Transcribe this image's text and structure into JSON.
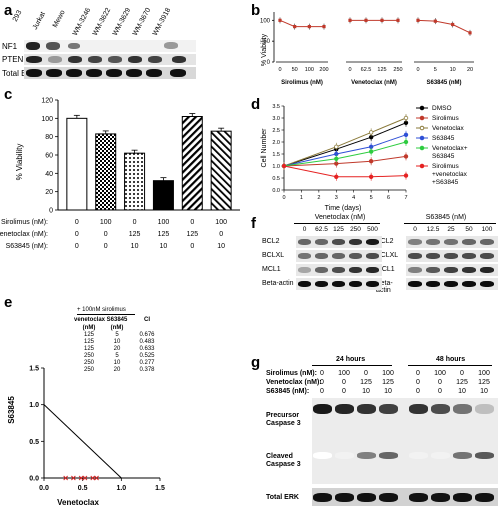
{
  "panel_letters": [
    "a",
    "b",
    "c",
    "d",
    "e",
    "f",
    "g"
  ],
  "panel_a": {
    "lanes": [
      "293",
      "Jurkat",
      "Mewo",
      "WM-3246",
      "WM-3622",
      "WM-3629",
      "WM-3670",
      "WM-3918"
    ],
    "rows": [
      "NF1",
      "PTEN",
      "Total ERK"
    ]
  },
  "panel_b": {
    "ylabel": "% Viability",
    "groups": [
      {
        "xlabel": "Sirolimus (nM)",
        "ticks": [
          "0",
          "50",
          "100",
          "200"
        ]
      },
      {
        "xlabel": "Venetoclax (nM)",
        "ticks": [
          "0",
          "62.5",
          "125",
          "250"
        ]
      },
      {
        "xlabel": "S63845 (nM)",
        "ticks": [
          "0",
          "5",
          "10",
          "20"
        ]
      }
    ],
    "ytick_labels": [
      "0",
      "50",
      "100"
    ]
  },
  "panel_c": {
    "ylabel": "% Viability",
    "row_labels": [
      "Sirolimus (nM):",
      "Venetoclax (nM):",
      "S63845 (nM):"
    ],
    "rows": [
      [
        "0",
        "100",
        "0",
        "100",
        "0",
        "100"
      ],
      [
        "0",
        "0",
        "125",
        "125",
        "125",
        "0"
      ],
      [
        "0",
        "0",
        "10",
        "10",
        "0",
        "10"
      ]
    ],
    "ytick_labels": [
      "0",
      "20",
      "40",
      "60",
      "80",
      "100",
      "120"
    ]
  },
  "panel_d": {
    "ylabel": "Cell Number",
    "xlabel": "Time (days)",
    "ytick_labels": [
      "0.0",
      "0.5",
      "1.0",
      "1.5",
      "2.0",
      "2.5",
      "3.0",
      "3.5"
    ],
    "xtick_labels": [
      "0",
      "1",
      "2",
      "3",
      "4",
      "5",
      "6",
      "7"
    ],
    "legend": [
      "DMSO",
      "Sirolimus",
      "Venetoclax",
      "S63845",
      "Venetoclax+ S63845",
      "Sirolimus +venetoclax +S63845"
    ]
  },
  "panel_e": {
    "header": "+ 100nM sirolimus",
    "col_headers": [
      "venetoclax (nM)",
      "S63845 (nM)",
      "CI"
    ],
    "rows": [
      [
        "125",
        "5",
        "0.676"
      ],
      [
        "125",
        "10",
        "0.483"
      ],
      [
        "125",
        "20",
        "0.633"
      ],
      [
        "250",
        "5",
        "0.525"
      ],
      [
        "250",
        "10",
        "0.277"
      ],
      [
        "250",
        "20",
        "0.378"
      ]
    ],
    "ylabel": "S63845",
    "xlabel": "Venetoclax",
    "ytick_labels": [
      "0.0",
      "0.5",
      "1.0",
      "1.5"
    ],
    "xtick_labels": [
      "0.0",
      "0.5",
      "1.0",
      "1.5"
    ]
  },
  "panel_f": {
    "left": {
      "title": "Venetoclax (nM)",
      "lanes": [
        "0",
        "62.5",
        "125",
        "250",
        "500"
      ]
    },
    "right": {
      "title": "S63845 (nM)",
      "lanes": [
        "0",
        "12.5",
        "25",
        "50",
        "100"
      ]
    },
    "rows": [
      "BCL2",
      "BCLXL",
      "MCL1",
      "Beta-actin"
    ]
  },
  "panel_g": {
    "time_labels": [
      "24 hours",
      "48 hours"
    ],
    "row_labels": [
      "Sirolimus (nM):",
      "Venetoclax (nM):",
      "S63845 (nM):"
    ],
    "rows": [
      [
        "0",
        "100",
        "0",
        "100",
        "0",
        "100",
        "0",
        "100"
      ],
      [
        "0",
        "0",
        "125",
        "125",
        "0",
        "0",
        "125",
        "125"
      ],
      [
        "0",
        "0",
        "10",
        "10",
        "0",
        "0",
        "10",
        "10"
      ]
    ],
    "blot_labels": [
      "Precursor Caspase 3",
      "Cleaved Caspase 3",
      "Total ERK"
    ]
  },
  "chart_data": [
    {
      "panel": "b",
      "type": "line",
      "ylabel": "% Viability",
      "ylim": [
        0,
        120
      ],
      "series": [
        {
          "xlabel": "Sirolimus (nM)",
          "x": [
            0,
            50,
            100,
            200
          ],
          "values": [
            100,
            85,
            85,
            85
          ]
        },
        {
          "xlabel": "Venetoclax (nM)",
          "x": [
            0,
            62.5,
            125,
            250
          ],
          "values": [
            100,
            100,
            100,
            100
          ]
        },
        {
          "xlabel": "S63845 (nM)",
          "x": [
            0,
            5,
            10,
            20
          ],
          "values": [
            100,
            98,
            90,
            70
          ]
        }
      ]
    },
    {
      "panel": "c",
      "type": "bar",
      "ylabel": "% Viability",
      "ylim": [
        0,
        120
      ],
      "values": [
        100,
        83,
        62,
        32,
        102,
        86
      ]
    },
    {
      "panel": "d",
      "type": "line",
      "ylabel": "Cell Number",
      "xlabel": "Time (days)",
      "ylim": [
        0,
        3.5
      ],
      "xlim": [
        0,
        7
      ],
      "x": [
        0,
        3,
        5,
        7
      ],
      "series": [
        {
          "name": "DMSO",
          "values": [
            1.0,
            1.7,
            2.2,
            2.8
          ]
        },
        {
          "name": "Sirolimus",
          "values": [
            1.0,
            1.1,
            1.2,
            1.4
          ]
        },
        {
          "name": "Venetoclax",
          "values": [
            1.0,
            1.8,
            2.4,
            3.0
          ]
        },
        {
          "name": "S63845",
          "values": [
            1.0,
            1.5,
            1.8,
            2.3
          ]
        },
        {
          "name": "Venetoclax+ S63845",
          "values": [
            1.0,
            1.3,
            1.6,
            2.0
          ]
        },
        {
          "name": "Sirolimus +venetoclax +S63845",
          "values": [
            1.0,
            0.55,
            0.55,
            0.6
          ]
        }
      ]
    },
    {
      "panel": "e",
      "type": "scatter",
      "ylabel": "S63845",
      "xlabel": "Venetoclax",
      "xlim": [
        0,
        1.5
      ],
      "ylim": [
        0,
        1.5
      ],
      "x": [
        0.28,
        0.38,
        0.48,
        0.53,
        0.63,
        0.68
      ],
      "values": [
        0,
        0,
        0,
        0,
        0,
        0
      ]
    }
  ]
}
